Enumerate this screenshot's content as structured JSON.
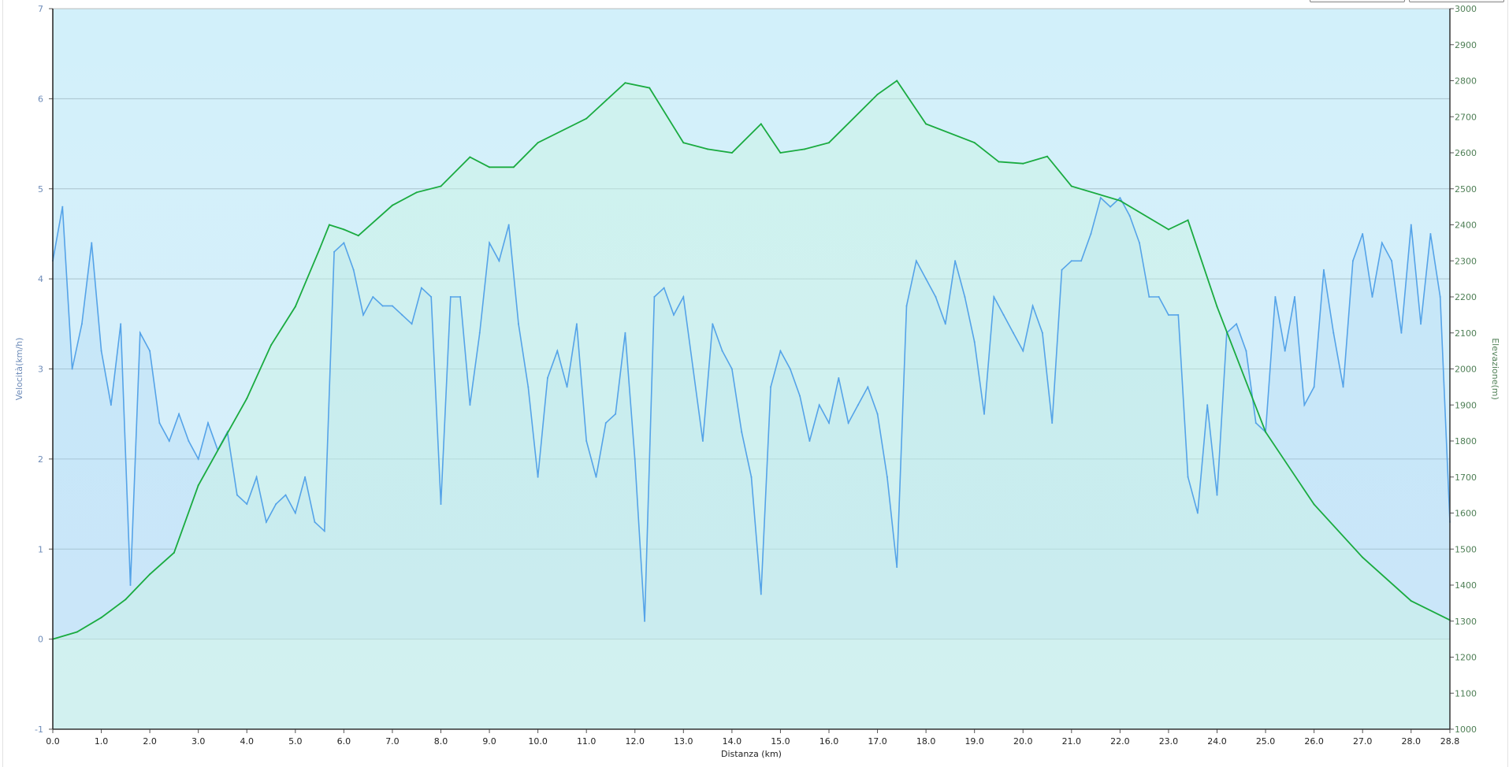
{
  "chart_data": {
    "type": "line",
    "xlabel": "Distanza  (km)",
    "ylabel_left": "Velocità(km/h)",
    "ylabel_right": "Elevazione(m)",
    "xlim": [
      0,
      28.8
    ],
    "ylim_left": [
      -1,
      7
    ],
    "ylim_right": [
      1000,
      3000
    ],
    "grid": true,
    "x_ticks": [
      "0.0",
      "1.0",
      "2.0",
      "3.0",
      "4.0",
      "5.0",
      "6.0",
      "7.0",
      "8.0",
      "9.0",
      "10.0",
      "11.0",
      "12.0",
      "13.0",
      "14.0",
      "15.0",
      "16.0",
      "17.0",
      "18.0",
      "19.0",
      "20.0",
      "21.0",
      "22.0",
      "23.0",
      "24.0",
      "25.0",
      "26.0",
      "27.0",
      "28.0",
      "28.8"
    ],
    "y_ticks_left": [
      "-1",
      "0",
      "1",
      "2",
      "3",
      "4",
      "5",
      "6",
      "7"
    ],
    "y_ticks_right": [
      "1000",
      "1100",
      "1200",
      "1300",
      "1400",
      "1500",
      "1600",
      "1700",
      "1800",
      "1900",
      "2000",
      "2100",
      "2200",
      "2300",
      "2400",
      "2500",
      "2600",
      "2700",
      "2800",
      "2900",
      "3000"
    ],
    "colors": {
      "speed": "#55a3e8",
      "elevation": "#1aab40",
      "background_top": "#d2f0fa",
      "background_bottom": "#d9eefb"
    },
    "series": [
      {
        "axis": "left",
        "x_step_km": 0.2,
        "values": [
          4.2,
          4.8,
          3.0,
          3.5,
          4.4,
          3.2,
          2.6,
          3.5,
          0.6,
          3.4,
          3.2,
          2.4,
          2.2,
          2.5,
          2.2,
          2.0,
          2.4,
          2.1,
          2.3,
          1.6,
          1.5,
          1.8,
          1.3,
          1.5,
          1.6,
          1.4,
          1.8,
          1.3,
          1.2,
          4.3,
          4.4,
          4.1,
          3.6,
          3.8,
          3.7,
          3.7,
          3.6,
          3.5,
          3.9,
          3.8,
          1.5,
          3.8,
          3.8,
          2.6,
          3.4,
          4.4,
          4.2,
          4.6,
          3.5,
          2.8,
          1.8,
          2.9,
          3.2,
          2.8,
          3.5,
          2.2,
          1.8,
          2.4,
          2.5,
          3.4,
          2.0,
          0.2,
          3.8,
          3.9,
          3.6,
          3.8,
          3.0,
          2.2,
          3.5,
          3.2,
          3.0,
          2.3,
          1.8,
          0.5,
          2.8,
          3.2,
          3.0,
          2.7,
          2.2,
          2.6,
          2.4,
          2.9,
          2.4,
          2.6,
          2.8,
          2.5,
          1.8,
          0.8,
          3.7,
          4.2,
          4.0,
          3.8,
          3.5,
          4.2,
          3.8,
          3.3,
          2.5,
          3.8,
          3.6,
          3.4,
          3.2,
          3.7,
          3.4,
          2.4,
          4.1,
          4.2,
          4.2,
          4.5,
          4.9,
          4.8,
          4.9,
          4.7,
          4.4,
          3.8,
          3.8,
          3.6,
          3.6,
          1.8,
          1.4,
          2.6,
          1.6,
          3.4,
          3.5,
          3.2,
          2.4,
          2.3,
          3.8,
          3.2,
          3.8,
          2.6,
          2.8,
          4.1,
          3.4,
          2.8,
          4.2,
          4.5,
          3.8,
          4.4,
          4.2,
          3.4,
          4.6,
          3.5,
          4.5,
          3.8,
          1.3
        ]
      },
      {
        "axis": "right",
        "x": [
          0,
          0.5,
          1.0,
          1.5,
          2.0,
          2.5,
          3.0,
          3.5,
          4.0,
          4.5,
          5.0,
          5.5,
          5.7,
          6.0,
          6.3,
          7.0,
          7.5,
          8.0,
          8.6,
          9.0,
          9.5,
          10.0,
          11.0,
          11.8,
          12.3,
          13.0,
          13.5,
          14.0,
          14.6,
          15.0,
          15.5,
          16.0,
          17.0,
          17.4,
          18.0,
          19.0,
          19.5,
          20.0,
          20.5,
          21.0,
          22.0,
          23.0,
          23.4,
          24.0,
          25.0,
          26.0,
          27.0,
          28.0,
          28.8
        ],
        "values": [
          1250,
          1270,
          1310,
          1360,
          1430,
          1490,
          1677,
          1798,
          1918,
          2066,
          2173,
          2333,
          2400,
          2387,
          2370,
          2454,
          2490,
          2507,
          2588,
          2560,
          2560,
          2628,
          2695,
          2794,
          2780,
          2628,
          2610,
          2600,
          2680,
          2600,
          2610,
          2628,
          2762,
          2800,
          2680,
          2628,
          2575,
          2570,
          2590,
          2507,
          2467,
          2387,
          2413,
          2173,
          1825,
          1624,
          1477,
          1356,
          1303
        ]
      }
    ]
  }
}
